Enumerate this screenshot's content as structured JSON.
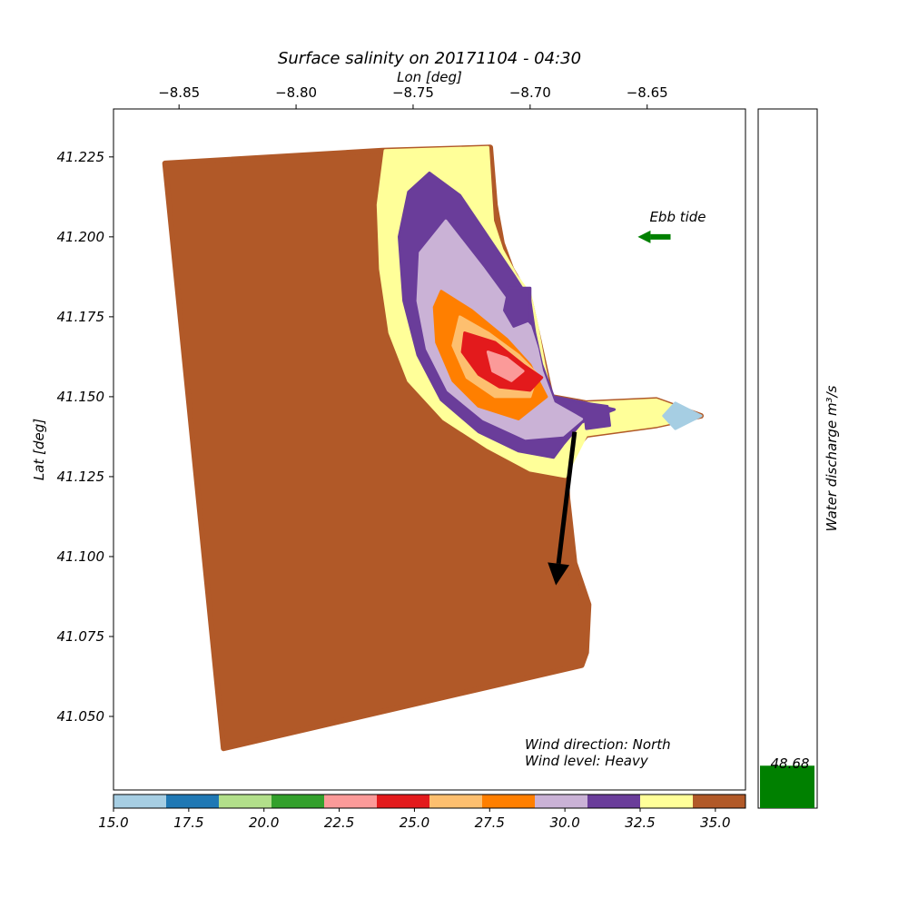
{
  "chart_data": {
    "type": "heatmap",
    "title": "Surface salinity on 20171104 - 04:30",
    "xlabel": "Lon [deg]",
    "ylabel": "Lat [deg]",
    "xlim": [
      -8.878,
      -8.608
    ],
    "ylim": [
      41.027,
      41.24
    ],
    "x_ticks": [
      -8.85,
      -8.8,
      -8.75,
      -8.7,
      -8.65
    ],
    "x_tick_labels": [
      "−8.85",
      "−8.80",
      "−8.75",
      "−8.70",
      "−8.65"
    ],
    "y_ticks": [
      41.225,
      41.2,
      41.175,
      41.15,
      41.125,
      41.1,
      41.075,
      41.05
    ],
    "y_tick_labels": [
      "41.225",
      "41.200",
      "41.175",
      "41.150",
      "41.125",
      "41.100",
      "41.075",
      "41.050"
    ],
    "colorbar": {
      "range": [
        15.0,
        36.0
      ],
      "tick_values": [
        15.0,
        17.5,
        20.0,
        22.5,
        25.0,
        27.5,
        30.0,
        32.5,
        35.0
      ],
      "tick_labels": [
        "15.0",
        "17.5",
        "20.0",
        "22.5",
        "25.0",
        "27.5",
        "30.0",
        "32.5",
        "35.0"
      ],
      "colors": [
        "#a6cee3",
        "#1f78b4",
        "#b2df8a",
        "#33a02c",
        "#fb9a99",
        "#e31a1c",
        "#fdbf6f",
        "#ff7f00",
        "#cab2d6",
        "#6a3d9a",
        "#ffff99",
        "#b15928"
      ]
    },
    "domain_outline": [
      [
        -8.856,
        41.223
      ],
      [
        -8.763,
        41.227
      ],
      [
        -8.717,
        41.228
      ],
      [
        -8.715,
        41.21
      ],
      [
        -8.712,
        41.198
      ],
      [
        -8.708,
        41.19
      ],
      [
        -8.7,
        41.18
      ],
      [
        -8.697,
        41.17
      ],
      [
        -8.694,
        41.16
      ],
      [
        -8.691,
        41.15
      ],
      [
        -8.676,
        41.148
      ],
      [
        -8.646,
        41.149
      ],
      [
        -8.627,
        41.144
      ],
      [
        -8.646,
        41.141
      ],
      [
        -8.676,
        41.138
      ],
      [
        -8.685,
        41.13
      ],
      [
        -8.684,
        41.118
      ],
      [
        -8.681,
        41.098
      ],
      [
        -8.675,
        41.085
      ],
      [
        -8.676,
        41.07
      ],
      [
        -8.678,
        41.066
      ],
      [
        -8.831,
        41.04
      ],
      [
        -8.856,
        41.223
      ]
    ],
    "salinity_zones": [
      {
        "value": 33.5,
        "color": "#ffff99",
        "polygon": [
          [
            -8.762,
            41.227
          ],
          [
            -8.718,
            41.228
          ],
          [
            -8.716,
            41.205
          ],
          [
            -8.712,
            41.196
          ],
          [
            -8.706,
            41.188
          ],
          [
            -8.7,
            41.182
          ],
          [
            -8.697,
            41.172
          ],
          [
            -8.694,
            41.16
          ],
          [
            -8.691,
            41.15
          ],
          [
            -8.676,
            41.148
          ],
          [
            -8.646,
            41.149
          ],
          [
            -8.627,
            41.144
          ],
          [
            -8.646,
            41.141
          ],
          [
            -8.676,
            41.138
          ],
          [
            -8.685,
            41.125
          ],
          [
            -8.7,
            41.127
          ],
          [
            -8.718,
            41.134
          ],
          [
            -8.737,
            41.143
          ],
          [
            -8.752,
            41.155
          ],
          [
            -8.76,
            41.17
          ],
          [
            -8.764,
            41.19
          ],
          [
            -8.765,
            41.21
          ]
        ]
      },
      {
        "value": 31.5,
        "color": "#6a3d9a",
        "polygon": [
          [
            -8.743,
            41.22
          ],
          [
            -8.73,
            41.213
          ],
          [
            -8.718,
            41.2
          ],
          [
            -8.707,
            41.188
          ],
          [
            -8.7,
            41.18
          ],
          [
            -8.698,
            41.17
          ],
          [
            -8.695,
            41.16
          ],
          [
            -8.69,
            41.15
          ],
          [
            -8.676,
            41.148
          ],
          [
            -8.664,
            41.146
          ],
          [
            -8.678,
            41.142
          ],
          [
            -8.686,
            41.135
          ],
          [
            -8.69,
            41.131
          ],
          [
            -8.705,
            41.133
          ],
          [
            -8.722,
            41.139
          ],
          [
            -8.738,
            41.149
          ],
          [
            -8.748,
            41.163
          ],
          [
            -8.754,
            41.18
          ],
          [
            -8.756,
            41.2
          ],
          [
            -8.752,
            41.214
          ]
        ]
      },
      {
        "value": 30.0,
        "color": "#cab2d6",
        "polygon": [
          [
            -8.736,
            41.205
          ],
          [
            -8.72,
            41.19
          ],
          [
            -8.708,
            41.178
          ],
          [
            -8.7,
            41.172
          ],
          [
            -8.697,
            41.165
          ],
          [
            -8.695,
            41.158
          ],
          [
            -8.69,
            41.148
          ],
          [
            -8.678,
            41.143
          ],
          [
            -8.686,
            41.138
          ],
          [
            -8.702,
            41.137
          ],
          [
            -8.72,
            41.143
          ],
          [
            -8.735,
            41.152
          ],
          [
            -8.744,
            41.165
          ],
          [
            -8.748,
            41.18
          ],
          [
            -8.747,
            41.195
          ]
        ]
      },
      {
        "value": 28.0,
        "color": "#ff7f00",
        "polygon": [
          [
            -8.738,
            41.183
          ],
          [
            -8.725,
            41.177
          ],
          [
            -8.71,
            41.168
          ],
          [
            -8.7,
            41.16
          ],
          [
            -8.693,
            41.15
          ],
          [
            -8.705,
            41.143
          ],
          [
            -8.722,
            41.147
          ],
          [
            -8.733,
            41.155
          ],
          [
            -8.74,
            41.167
          ],
          [
            -8.741,
            41.178
          ]
        ]
      },
      {
        "value": 27.0,
        "color": "#fdbf6f",
        "polygon": [
          [
            -8.73,
            41.175
          ],
          [
            -8.718,
            41.17
          ],
          [
            -8.705,
            41.163
          ],
          [
            -8.697,
            41.157
          ],
          [
            -8.7,
            41.15
          ],
          [
            -8.715,
            41.15
          ],
          [
            -8.727,
            41.156
          ],
          [
            -8.733,
            41.166
          ]
        ]
      },
      {
        "value": 25.0,
        "color": "#e31a1c",
        "polygon": [
          [
            -8.728,
            41.17
          ],
          [
            -8.715,
            41.167
          ],
          [
            -8.703,
            41.16
          ],
          [
            -8.695,
            41.156
          ],
          [
            -8.7,
            41.152
          ],
          [
            -8.713,
            41.153
          ],
          [
            -8.722,
            41.157
          ],
          [
            -8.729,
            41.164
          ]
        ]
      },
      {
        "value": 23.0,
        "color": "#fb9a99",
        "polygon": [
          [
            -8.718,
            41.164
          ],
          [
            -8.71,
            41.162
          ],
          [
            -8.703,
            41.158
          ],
          [
            -8.708,
            41.155
          ],
          [
            -8.716,
            41.158
          ]
        ]
      },
      {
        "value": 31.5,
        "color": "#6a3d9a",
        "polygon": [
          [
            -8.709,
            41.184
          ],
          [
            -8.7,
            41.184
          ],
          [
            -8.7,
            41.174
          ],
          [
            -8.707,
            41.172
          ],
          [
            -8.711,
            41.177
          ]
        ]
      },
      {
        "value": 31.5,
        "color": "#6a3d9a",
        "polygon": [
          [
            -8.677,
            41.148
          ],
          [
            -8.667,
            41.147
          ],
          [
            -8.666,
            41.141
          ],
          [
            -8.676,
            41.14
          ]
        ]
      },
      {
        "value": 16.0,
        "color": "#a6cee3",
        "polygon": [
          [
            -8.638,
            41.148
          ],
          [
            -8.627,
            41.144
          ],
          [
            -8.638,
            41.14
          ],
          [
            -8.643,
            41.144
          ]
        ]
      }
    ],
    "annotations": {
      "tide_label": "Ebb tide",
      "tide_arrow": {
        "from": [
          -8.64,
          41.2
        ],
        "to": [
          -8.654,
          41.2
        ],
        "color": "#008000"
      },
      "wind_arrow": {
        "from": [
          -8.681,
          41.139
        ],
        "to": [
          -8.689,
          41.091
        ],
        "color": "#000000"
      },
      "wind_direction_text": "Wind direction: North",
      "wind_level_text": "Wind level: Heavy"
    },
    "discharge": {
      "label": "Water discharge m³/s",
      "value": 48.68,
      "value_text": "48.68",
      "range": [
        0,
        800
      ],
      "color": "#008000"
    }
  }
}
